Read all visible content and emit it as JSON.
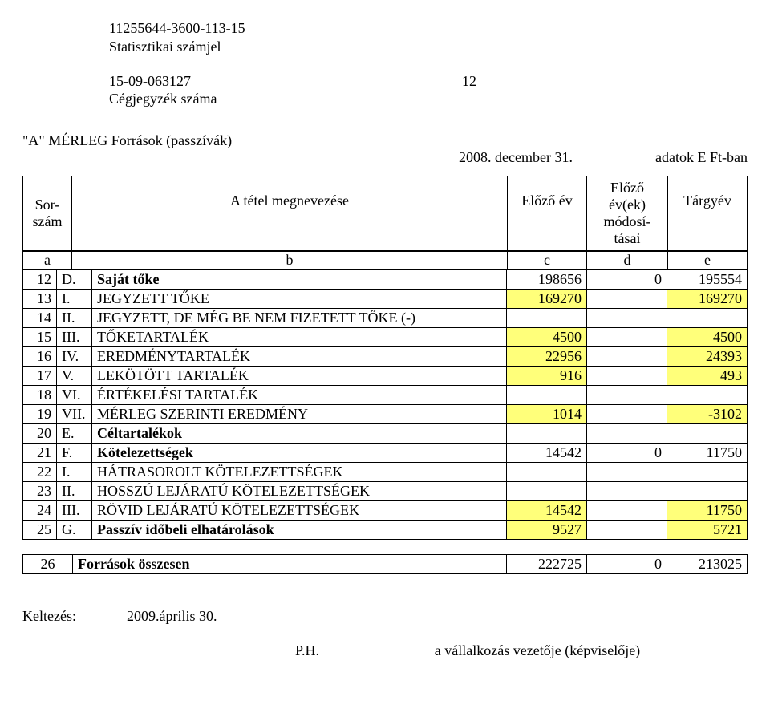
{
  "header": {
    "stat_id": "11255644-3600-113-15",
    "stat_label": "Statisztikai számjel",
    "reg_num": "15-09-063127",
    "reg_label": "Cégjegyzék száma",
    "page_right": "12"
  },
  "sheet": {
    "title": "\"A\" MÉRLEG Források (passzívák)",
    "date_text": "2008. december 31.",
    "units_text": "adatok E Ft-ban"
  },
  "col_heads": {
    "sor": "Sor-\nszám",
    "name": "A tétel megnevezése",
    "prev": "Előző év",
    "mod": "Előző év(ek) módosí-\ntásai",
    "cur": "Tárgyév"
  },
  "letters": {
    "a": "a",
    "b": "b",
    "c": "c",
    "d": "d",
    "e": "e"
  },
  "rows": [
    {
      "n": "12",
      "pre": "D.",
      "name": "Saját tőke",
      "c": "198656",
      "d": "0",
      "e": "195554",
      "bold": true
    },
    {
      "n": "13",
      "pre": "I.",
      "name": "JEGYZETT TŐKE",
      "c": "169270",
      "d": "",
      "e": "169270",
      "shade_ce": true
    },
    {
      "n": "14",
      "pre": "II.",
      "name": "JEGYZETT, DE MÉG BE NEM FIZETETT TŐKE (-)",
      "c": "",
      "d": "",
      "e": ""
    },
    {
      "n": "15",
      "pre": "III.",
      "name": "TŐKETARTALÉK",
      "c": "4500",
      "d": "",
      "e": "4500",
      "shade_ce": true
    },
    {
      "n": "16",
      "pre": "IV.",
      "name": "EREDMÉNYTARTALÉK",
      "c": "22956",
      "d": "",
      "e": "24393",
      "shade_ce": true
    },
    {
      "n": "17",
      "pre": "V.",
      "name": "LEKÖTÖTT TARTALÉK",
      "c": "916",
      "d": "",
      "e": "493",
      "shade_ce": true
    },
    {
      "n": "18",
      "pre": "VI.",
      "name": "ÉRTÉKELÉSI TARTALÉK",
      "c": "",
      "d": "",
      "e": ""
    },
    {
      "n": "19",
      "pre": "VII.",
      "name": "MÉRLEG SZERINTI EREDMÉNY",
      "c": "1014",
      "d": "",
      "e": "-3102",
      "shade_ce": true
    },
    {
      "n": "20",
      "pre": "E.",
      "name": "Céltartalékok",
      "c": "",
      "d": "",
      "e": "",
      "bold": true
    },
    {
      "n": "21",
      "pre": "F.",
      "name": "Kötelezettségek",
      "c": "14542",
      "d": "0",
      "e": "11750",
      "bold": true
    },
    {
      "n": "22",
      "pre": "I.",
      "name": "HÁTRASOROLT KÖTELEZETTSÉGEK",
      "c": "",
      "d": "",
      "e": ""
    },
    {
      "n": "23",
      "pre": "II.",
      "name": "HOSSZÚ LEJÁRATÚ KÖTELEZETTSÉGEK",
      "c": "",
      "d": "",
      "e": ""
    },
    {
      "n": "24",
      "pre": "III.",
      "name": "RÖVID LEJÁRATÚ KÖTELEZETTSÉGEK",
      "c": "14542",
      "d": "",
      "e": "11750",
      "shade_ce": true
    },
    {
      "n": "25",
      "pre": "G.",
      "name": "Passzív időbeli elhatárolások",
      "c": "9527",
      "d": "",
      "e": "5721",
      "bold": true,
      "shade_ce": true
    }
  ],
  "totals": {
    "n": "26",
    "name": "Források összesen",
    "c": "222725",
    "d": "0",
    "e": "213025"
  },
  "footer": {
    "dated_label": "Keltezés:",
    "dated_value": "2009.április 30.",
    "ph": "P.H.",
    "sign": "a vállalkozás vezetője (képviselője)"
  },
  "style": {
    "highlight_color": "#ffff7a",
    "border_color": "#000000",
    "font_family": "Times New Roman",
    "base_fontsize_pt": 14
  }
}
